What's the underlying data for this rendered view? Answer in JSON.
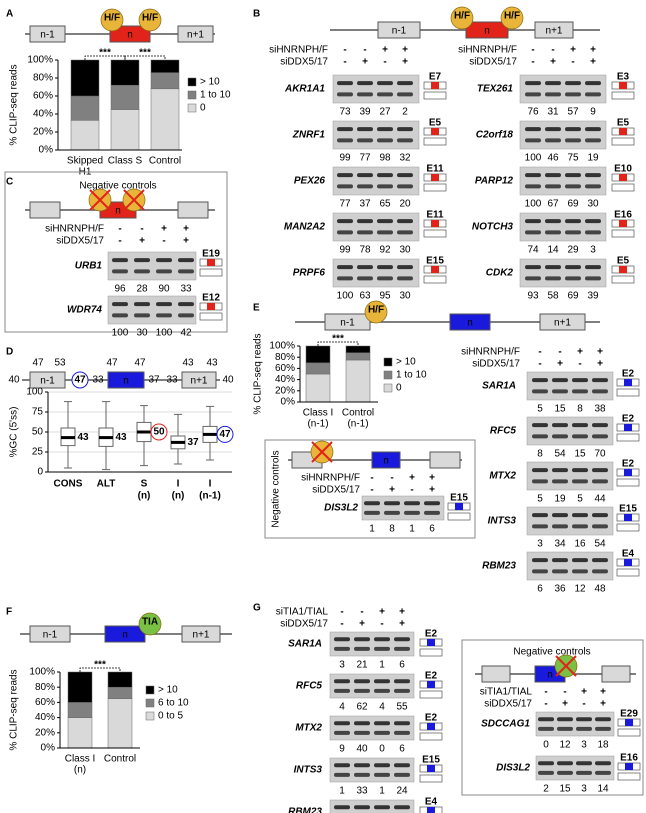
{
  "A": {
    "letter": "A",
    "diagram": {
      "left": "n-1",
      "center": "n",
      "right": "n+1",
      "factors": [
        "H/F",
        "H/F"
      ]
    },
    "chart": {
      "type": "bar",
      "stacked": true,
      "ylabel": "% CLIP-seq reads",
      "categories": [
        [
          "Skipped",
          "H1"
        ],
        [
          "Class S"
        ],
        [
          "Control"
        ]
      ],
      "category_colors": [
        "#000000",
        "#e2231a",
        "#000000"
      ],
      "series": [
        {
          "name": "0",
          "color": "#d9d9d9",
          "values": [
            33,
            45,
            68
          ]
        },
        {
          "name": "1 to 10",
          "color": "#808080",
          "values": [
            27,
            27,
            18
          ]
        },
        {
          "name": "> 10",
          "color": "#000000",
          "values": [
            40,
            28,
            14
          ]
        }
      ],
      "ylim": [
        0,
        100
      ],
      "yticks": [
        {
          "value": 0,
          "label": "0%"
        },
        {
          "value": 20,
          "label": "20%"
        },
        {
          "value": 40,
          "label": "40%"
        },
        {
          "value": 60,
          "label": "60%"
        },
        {
          "value": 80,
          "label": "80%"
        },
        {
          "value": 100,
          "label": "100%"
        }
      ],
      "significance": [
        {
          "pair": [
            0,
            1
          ],
          "label": "***"
        },
        {
          "pair": [
            1,
            2
          ],
          "label": "***"
        }
      ]
    }
  },
  "B": {
    "letter": "B",
    "diagram": {
      "left": "n-1",
      "center": "n",
      "right": "n+1",
      "factors": [
        "H/F",
        "H/F"
      ]
    },
    "treatments": [
      {
        "name": "siHNRNPH/F",
        "signs": [
          "-",
          "-",
          "+",
          "+"
        ]
      },
      {
        "name": "siDDX5/17",
        "signs": [
          "-",
          "+",
          "-",
          "+"
        ]
      }
    ],
    "exon_color": "#e2231a",
    "columns": [
      [
        {
          "name": "AKR1A1",
          "values": [
            73,
            39,
            27,
            2
          ],
          "exon": "E7"
        },
        {
          "name": "ZNRF1",
          "values": [
            99,
            77,
            98,
            32
          ],
          "exon": "E5"
        },
        {
          "name": "PEX26",
          "values": [
            77,
            37,
            65,
            20
          ],
          "exon": "E11"
        },
        {
          "name": "MAN2A2",
          "values": [
            99,
            78,
            92,
            30
          ],
          "exon": "E11"
        },
        {
          "name": "PRPF6",
          "values": [
            100,
            63,
            95,
            30
          ],
          "exon": "E15"
        }
      ],
      [
        {
          "name": "TEX261",
          "values": [
            76,
            31,
            57,
            9
          ],
          "exon": "E3"
        },
        {
          "name": "C2orf18",
          "values": [
            100,
            46,
            75,
            19
          ],
          "exon": "E5"
        },
        {
          "name": "PARP12",
          "values": [
            100,
            67,
            69,
            30
          ],
          "exon": "E10"
        },
        {
          "name": "NOTCH3",
          "values": [
            74,
            14,
            29,
            3
          ],
          "exon": "E16"
        },
        {
          "name": "CDK2",
          "values": [
            93,
            58,
            69,
            39
          ],
          "exon": "E5"
        }
      ]
    ]
  },
  "C": {
    "letter": "C",
    "title": "Negative controls",
    "diagram": {
      "center": "n"
    },
    "treatments": [
      {
        "name": "siHNRNPH/F",
        "signs": [
          "-",
          "-",
          "+",
          "+"
        ]
      },
      {
        "name": "siDDX5/17",
        "signs": [
          "-",
          "+",
          "-",
          "+"
        ]
      }
    ],
    "exon_color": "#e2231a",
    "genes": [
      {
        "name": "URB1",
        "values": [
          96,
          28,
          90,
          33
        ],
        "exon": "E19"
      },
      {
        "name": "WDR74",
        "values": [
          100,
          30,
          100,
          42
        ],
        "exon": "E12"
      }
    ]
  },
  "D": {
    "letter": "D",
    "diagram": {
      "left": "n-1",
      "center": "n",
      "right": "n+1",
      "gc": [
        40,
        47,
        53,
        33,
        47,
        47,
        37,
        33,
        43,
        43,
        40
      ],
      "circled_gc": 47
    },
    "chart": {
      "type": "box",
      "ylabel": "%GC (5'ss)",
      "categories": [
        [
          "CONS"
        ],
        [
          "ALT"
        ],
        [
          "S",
          "(n)"
        ],
        [
          "I",
          "(n)"
        ],
        [
          "I",
          "(n-1)"
        ]
      ],
      "category_colors": [
        "#000000",
        "#000000",
        "#e2231a",
        "#1a1adc",
        "#1a1adc"
      ],
      "whisker_low": [
        5,
        3,
        8,
        10,
        15
      ],
      "q1": [
        33,
        32,
        38,
        29,
        37
      ],
      "median": [
        43,
        43,
        50,
        37,
        47
      ],
      "q3": [
        55,
        55,
        62,
        45,
        57
      ],
      "whisker_high": [
        88,
        88,
        83,
        72,
        82
      ],
      "median_circled": [
        false,
        false,
        true,
        false,
        true
      ],
      "ylim": [
        0,
        100
      ],
      "yticks": [
        0,
        25,
        50,
        75,
        100
      ],
      "grid": true
    }
  },
  "E": {
    "letter": "E",
    "diagram": {
      "left": "n-1",
      "center": "n",
      "right": "n+1",
      "factors": [
        "H/F"
      ]
    },
    "chart": {
      "type": "bar",
      "stacked": true,
      "ylabel": "% CLIP-seq reads",
      "categories": [
        [
          "Class I",
          "(n-1)"
        ],
        [
          "Control",
          "(n-1)"
        ]
      ],
      "category_colors": [
        "#1a1adc",
        "#000000"
      ],
      "series": [
        {
          "name": "0",
          "color": "#d9d9d9",
          "values": [
            50,
            75
          ]
        },
        {
          "name": "1 to 10",
          "color": "#808080",
          "values": [
            20,
            13
          ]
        },
        {
          "name": "> 10",
          "color": "#000000",
          "values": [
            30,
            12
          ]
        }
      ],
      "ylim": [
        0,
        100
      ],
      "yticks": [
        {
          "value": 0,
          "label": "0%"
        },
        {
          "value": 20,
          "label": "20%"
        },
        {
          "value": 40,
          "label": "40%"
        },
        {
          "value": 60,
          "label": "60%"
        },
        {
          "value": 80,
          "label": "80%"
        },
        {
          "value": 100,
          "label": "100%"
        }
      ],
      "significance": [
        {
          "pair": [
            0,
            1
          ],
          "label": "***"
        }
      ]
    },
    "treatments": [
      {
        "name": "siHNRNPH/F",
        "signs": [
          "-",
          "-",
          "+",
          "+"
        ]
      },
      {
        "name": "siDDX5/17",
        "signs": [
          "-",
          "+",
          "-",
          "+"
        ]
      }
    ],
    "exon_color": "#1a1adc",
    "genes": [
      {
        "name": "SAR1A",
        "values": [
          5,
          15,
          8,
          38
        ],
        "exon": "E2"
      },
      {
        "name": "RFC5",
        "values": [
          8,
          54,
          15,
          70
        ],
        "exon": "E2"
      },
      {
        "name": "MTX2",
        "values": [
          5,
          19,
          5,
          44
        ],
        "exon": "E2"
      },
      {
        "name": "INTS3",
        "values": [
          3,
          34,
          16,
          54
        ],
        "exon": "E15"
      },
      {
        "name": "RBM23",
        "values": [
          6,
          36,
          12,
          48
        ],
        "exon": "E4"
      }
    ],
    "negative_controls": {
      "title": "Negative controls",
      "diagram": {
        "center": "n"
      },
      "treatments": [
        {
          "name": "siHNRNPH/F",
          "signs": [
            "-",
            "-",
            "+",
            "+"
          ]
        },
        {
          "name": "siDDX5/17",
          "signs": [
            "-",
            "+",
            "-",
            "+"
          ]
        }
      ],
      "genes": [
        {
          "name": "DIS3L2",
          "values": [
            1,
            8,
            1,
            6
          ],
          "exon": "E15"
        }
      ]
    }
  },
  "F": {
    "letter": "F",
    "diagram": {
      "left": "n-1",
      "center": "n",
      "right": "n+1",
      "factors": [
        "TIA"
      ]
    },
    "chart": {
      "type": "bar",
      "stacked": true,
      "ylabel": "% CLIP-seq reads",
      "categories": [
        [
          "Class I",
          "(n)"
        ],
        [
          "Control"
        ]
      ],
      "category_colors": [
        "#1a1adc",
        "#000000"
      ],
      "series": [
        {
          "name": "0 to 5",
          "color": "#d9d9d9",
          "values": [
            40,
            65
          ]
        },
        {
          "name": "6 to 10",
          "color": "#808080",
          "values": [
            20,
            15
          ]
        },
        {
          "name": "> 10",
          "color": "#000000",
          "values": [
            40,
            20
          ]
        }
      ],
      "ylim": [
        0,
        100
      ],
      "yticks": [
        {
          "value": 0,
          "label": "0%"
        },
        {
          "value": 20,
          "label": "20%"
        },
        {
          "value": 40,
          "label": "40%"
        },
        {
          "value": 60,
          "label": "60%"
        },
        {
          "value": 80,
          "label": "80%"
        },
        {
          "value": 100,
          "label": "100%"
        }
      ],
      "significance": [
        {
          "pair": [
            0,
            1
          ],
          "label": "***"
        }
      ]
    }
  },
  "G": {
    "letter": "G",
    "treatments": [
      {
        "name": "siTIA1/TIAL",
        "signs": [
          "-",
          "-",
          "+",
          "+"
        ]
      },
      {
        "name": "siDDX5/17",
        "signs": [
          "-",
          "+",
          "-",
          "+"
        ]
      }
    ],
    "exon_color": "#1a1adc",
    "genes": [
      {
        "name": "SAR1A",
        "values": [
          3,
          21,
          1,
          6
        ],
        "exon": "E2"
      },
      {
        "name": "RFC5",
        "values": [
          4,
          62,
          4,
          55
        ],
        "exon": "E2"
      },
      {
        "name": "MTX2",
        "values": [
          9,
          40,
          0,
          6
        ],
        "exon": "E2"
      },
      {
        "name": "INTS3",
        "values": [
          1,
          33,
          1,
          24
        ],
        "exon": "E15"
      },
      {
        "name": "RBM23",
        "values": [
          null,
          null,
          null,
          null
        ],
        "exon": "E4"
      }
    ],
    "negative_controls": {
      "title": "Negative controls",
      "diagram": {
        "center": "n"
      },
      "treatments": [
        {
          "name": "siTIA1/TIAL",
          "signs": [
            "-",
            "-",
            "+",
            "+"
          ]
        },
        {
          "name": "siDDX5/17",
          "signs": [
            "-",
            "+",
            "-",
            "+"
          ]
        }
      ],
      "genes": [
        {
          "name": "SDCCAG1",
          "values": [
            0,
            12,
            3,
            18
          ],
          "exon": "E29"
        },
        {
          "name": "DIS3L2",
          "values": [
            2,
            15,
            3,
            14
          ],
          "exon": "E16"
        }
      ]
    }
  }
}
